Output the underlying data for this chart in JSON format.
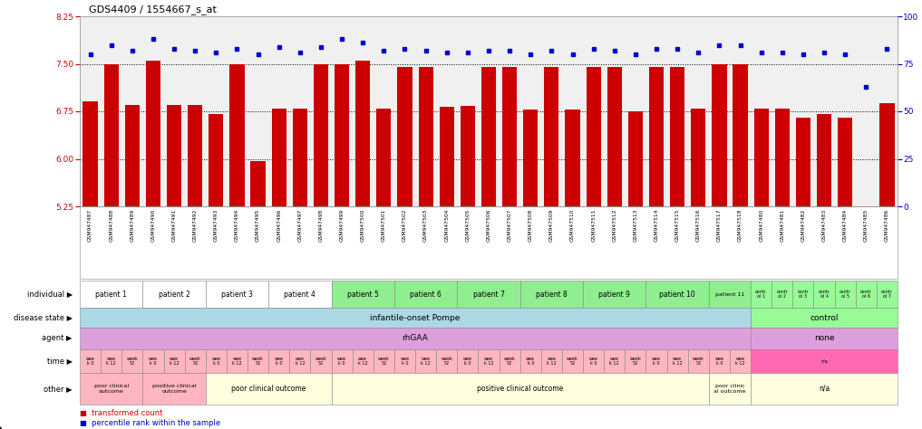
{
  "title": "GDS4409 / 1554667_s_at",
  "sample_ids": [
    "GSM947487",
    "GSM947488",
    "GSM947489",
    "GSM947490",
    "GSM947491",
    "GSM947492",
    "GSM947493",
    "GSM947494",
    "GSM947495",
    "GSM947496",
    "GSM947497",
    "GSM947498",
    "GSM947499",
    "GSM947500",
    "GSM947501",
    "GSM947502",
    "GSM947503",
    "GSM947504",
    "GSM947505",
    "GSM947506",
    "GSM947507",
    "GSM947508",
    "GSM947509",
    "GSM947510",
    "GSM947511",
    "GSM947512",
    "GSM947513",
    "GSM947514",
    "GSM947515",
    "GSM947516",
    "GSM947517",
    "GSM947518",
    "GSM947480",
    "GSM947481",
    "GSM947482",
    "GSM947483",
    "GSM947484",
    "GSM947485",
    "GSM947486"
  ],
  "bar_values": [
    6.9,
    7.5,
    6.85,
    7.55,
    6.85,
    6.85,
    6.7,
    7.5,
    5.97,
    6.8,
    6.8,
    7.5,
    7.5,
    7.55,
    6.8,
    7.45,
    7.45,
    6.82,
    6.83,
    7.45,
    7.45,
    6.78,
    7.45,
    6.78,
    7.45,
    7.45,
    6.75,
    7.45,
    7.45,
    6.8,
    7.5,
    7.5,
    6.8,
    6.8,
    6.65,
    6.7,
    6.65,
    5.2,
    6.88
  ],
  "dot_values": [
    80,
    85,
    82,
    88,
    83,
    82,
    81,
    83,
    80,
    84,
    81,
    84,
    88,
    86,
    82,
    83,
    82,
    81,
    81,
    82,
    82,
    80,
    82,
    80,
    83,
    82,
    80,
    83,
    83,
    81,
    85,
    85,
    81,
    81,
    80,
    81,
    80,
    63,
    83
  ],
  "bar_color": "#cc0000",
  "dot_color": "#0000cc",
  "ylim_left": [
    5.25,
    8.25
  ],
  "ylim_right": [
    0,
    100
  ],
  "yticks_left": [
    5.25,
    6.0,
    6.75,
    7.5,
    8.25
  ],
  "yticks_right": [
    0,
    25,
    50,
    75,
    100
  ],
  "hlines": [
    7.5,
    6.75,
    6.0
  ],
  "individual_row": {
    "label": "individual",
    "groups": [
      {
        "text": "patient 1",
        "start": 0,
        "end": 2,
        "color": "#ffffff"
      },
      {
        "text": "patient 2",
        "start": 3,
        "end": 5,
        "color": "#ffffff"
      },
      {
        "text": "patient 3",
        "start": 6,
        "end": 8,
        "color": "#ffffff"
      },
      {
        "text": "patient 4",
        "start": 9,
        "end": 11,
        "color": "#ffffff"
      },
      {
        "text": "patient 5",
        "start": 12,
        "end": 14,
        "color": "#90ee90"
      },
      {
        "text": "patient 6",
        "start": 15,
        "end": 17,
        "color": "#90ee90"
      },
      {
        "text": "patient 7",
        "start": 18,
        "end": 20,
        "color": "#90ee90"
      },
      {
        "text": "patient 8",
        "start": 21,
        "end": 23,
        "color": "#90ee90"
      },
      {
        "text": "patient 9",
        "start": 24,
        "end": 26,
        "color": "#90ee90"
      },
      {
        "text": "patient 10",
        "start": 27,
        "end": 29,
        "color": "#90ee90"
      },
      {
        "text": "patient 11",
        "start": 30,
        "end": 31,
        "color": "#90ee90"
      },
      {
        "text": "contr\nol 1",
        "start": 32,
        "end": 32,
        "color": "#98fb98"
      },
      {
        "text": "contr\nol 2",
        "start": 33,
        "end": 33,
        "color": "#98fb98"
      },
      {
        "text": "contr\nol 3",
        "start": 34,
        "end": 34,
        "color": "#98fb98"
      },
      {
        "text": "contr\nol 4",
        "start": 35,
        "end": 35,
        "color": "#98fb98"
      },
      {
        "text": "contr\nol 5",
        "start": 36,
        "end": 36,
        "color": "#98fb98"
      },
      {
        "text": "contr\nol 6",
        "start": 37,
        "end": 37,
        "color": "#98fb98"
      },
      {
        "text": "contr\nol 7",
        "start": 38,
        "end": 38,
        "color": "#98fb98"
      }
    ]
  },
  "disease_state_row": {
    "label": "disease state",
    "groups": [
      {
        "text": "infantile-onset Pompe",
        "start": 0,
        "end": 31,
        "color": "#add8e6"
      },
      {
        "text": "control",
        "start": 32,
        "end": 38,
        "color": "#98fb98"
      }
    ]
  },
  "agent_row": {
    "label": "agent",
    "groups": [
      {
        "text": "rhGAA",
        "start": 0,
        "end": 31,
        "color": "#dda0dd"
      },
      {
        "text": "none",
        "start": 32,
        "end": 38,
        "color": "#dda0dd"
      }
    ]
  },
  "time_row": {
    "label": "time",
    "groups": [
      {
        "text": "wee\nk 0",
        "start": 0,
        "end": 0,
        "color": "#ffb6c1"
      },
      {
        "text": "wee\nk 12",
        "start": 1,
        "end": 1,
        "color": "#ffb6c1"
      },
      {
        "text": "week\n52",
        "start": 2,
        "end": 2,
        "color": "#ffb6c1"
      },
      {
        "text": "wee\nk 0",
        "start": 3,
        "end": 3,
        "color": "#ffb6c1"
      },
      {
        "text": "wee\nk 12",
        "start": 4,
        "end": 4,
        "color": "#ffb6c1"
      },
      {
        "text": "week\n52",
        "start": 5,
        "end": 5,
        "color": "#ffb6c1"
      },
      {
        "text": "wee\nk 0",
        "start": 6,
        "end": 6,
        "color": "#ffb6c1"
      },
      {
        "text": "wee\nk 12",
        "start": 7,
        "end": 7,
        "color": "#ffb6c1"
      },
      {
        "text": "week\n52",
        "start": 8,
        "end": 8,
        "color": "#ffb6c1"
      },
      {
        "text": "wee\nk 0",
        "start": 9,
        "end": 9,
        "color": "#ffb6c1"
      },
      {
        "text": "wee\nk 12",
        "start": 10,
        "end": 10,
        "color": "#ffb6c1"
      },
      {
        "text": "week\n52",
        "start": 11,
        "end": 11,
        "color": "#ffb6c1"
      },
      {
        "text": "wee\nk 0",
        "start": 12,
        "end": 12,
        "color": "#ffb6c1"
      },
      {
        "text": "wee\nk 12",
        "start": 13,
        "end": 13,
        "color": "#ffb6c1"
      },
      {
        "text": "week\n52",
        "start": 14,
        "end": 14,
        "color": "#ffb6c1"
      },
      {
        "text": "wee\nk 0",
        "start": 15,
        "end": 15,
        "color": "#ffb6c1"
      },
      {
        "text": "wee\nk 12",
        "start": 16,
        "end": 16,
        "color": "#ffb6c1"
      },
      {
        "text": "week\n52",
        "start": 17,
        "end": 17,
        "color": "#ffb6c1"
      },
      {
        "text": "wee\nk 0",
        "start": 18,
        "end": 18,
        "color": "#ffb6c1"
      },
      {
        "text": "wee\nk 12",
        "start": 19,
        "end": 19,
        "color": "#ffb6c1"
      },
      {
        "text": "week\n52",
        "start": 20,
        "end": 20,
        "color": "#ffb6c1"
      },
      {
        "text": "wee\nk 0",
        "start": 21,
        "end": 21,
        "color": "#ffb6c1"
      },
      {
        "text": "wee\nk 12",
        "start": 22,
        "end": 22,
        "color": "#ffb6c1"
      },
      {
        "text": "week\n52",
        "start": 23,
        "end": 23,
        "color": "#ffb6c1"
      },
      {
        "text": "wee\nk 0",
        "start": 24,
        "end": 24,
        "color": "#ffb6c1"
      },
      {
        "text": "wee\nk 12",
        "start": 25,
        "end": 25,
        "color": "#ffb6c1"
      },
      {
        "text": "week\n52",
        "start": 26,
        "end": 26,
        "color": "#ffb6c1"
      },
      {
        "text": "wee\nk 0",
        "start": 27,
        "end": 27,
        "color": "#ffb6c1"
      },
      {
        "text": "wee\nk 12",
        "start": 28,
        "end": 28,
        "color": "#ffb6c1"
      },
      {
        "text": "week\n52",
        "start": 29,
        "end": 29,
        "color": "#ffb6c1"
      },
      {
        "text": "wee\nk 0",
        "start": 30,
        "end": 30,
        "color": "#ffb6c1"
      },
      {
        "text": "wee\nk 12",
        "start": 31,
        "end": 31,
        "color": "#ffb6c1"
      },
      {
        "text": "n/a",
        "start": 32,
        "end": 38,
        "color": "#ff69b4"
      }
    ]
  },
  "other_row": {
    "label": "other",
    "groups": [
      {
        "text": "poor clinical\noutcome",
        "start": 0,
        "end": 2,
        "color": "#ffb6c1"
      },
      {
        "text": "positive clinical\noutcome",
        "start": 3,
        "end": 5,
        "color": "#ffb6c1"
      },
      {
        "text": "poor clinical outcome",
        "start": 6,
        "end": 11,
        "color": "#ffffe0"
      },
      {
        "text": "positive clinical outcome",
        "start": 12,
        "end": 29,
        "color": "#ffffe0"
      },
      {
        "text": "poor clinic\nal outcome",
        "start": 30,
        "end": 31,
        "color": "#ffffe0"
      },
      {
        "text": "n/a",
        "start": 32,
        "end": 38,
        "color": "#ffffe0"
      }
    ]
  },
  "legend": [
    {
      "label": "transformed count",
      "color": "#cc0000"
    },
    {
      "label": "percentile rank within the sample",
      "color": "#0000cc"
    }
  ]
}
